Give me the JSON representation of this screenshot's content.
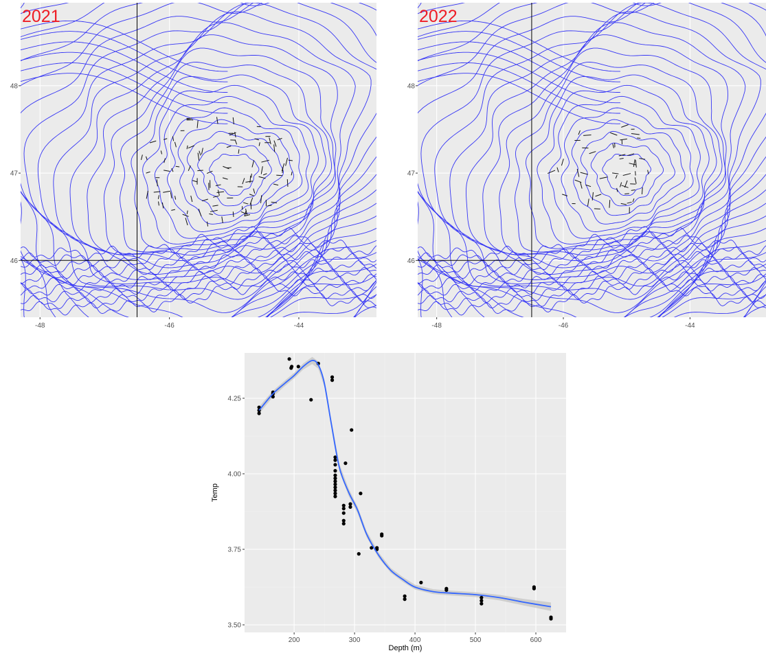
{
  "colors": {
    "panel_background": "#ebebeb",
    "grid_major": "#ffffff",
    "contour": "#3535f5",
    "segment": "#111111",
    "year_label": "#ee1c25",
    "smooth_line": "#3366ff",
    "smooth_band": "#c4c4c4",
    "point": "#000000"
  },
  "chart_data": [
    {
      "type": "contour-map",
      "title": "2021",
      "x_ticks": [
        "-48",
        "-46",
        "-44"
      ],
      "x_tick_values": [
        -48,
        -46,
        -44
      ],
      "y_ticks": [
        "48",
        "47",
        "46"
      ],
      "y_tick_values": [
        48,
        47,
        46
      ],
      "xlim": [
        -48.3,
        -42.8
      ],
      "ylim": [
        45.35,
        48.95
      ],
      "grid": true,
      "reference_lines": {
        "vertical_x": -46.5,
        "horizontal_y": 46.0
      },
      "segment_count": 110
    },
    {
      "type": "contour-map",
      "title": "2022",
      "x_ticks": [
        "-48",
        "-46",
        "-44"
      ],
      "x_tick_values": [
        -48,
        -46,
        -44
      ],
      "y_ticks": [
        "48",
        "47",
        "46"
      ],
      "y_tick_values": [
        48,
        47,
        46
      ],
      "xlim": [
        -48.3,
        -42.8
      ],
      "ylim": [
        45.35,
        48.95
      ],
      "grid": true,
      "reference_lines": {
        "vertical_x": -46.5,
        "horizontal_y": 46.0
      },
      "segment_count": 55
    },
    {
      "type": "scatter",
      "xlabel": "Depth (m)",
      "ylabel": "Temp",
      "x_ticks": [
        "200",
        "300",
        "400",
        "500",
        "600"
      ],
      "x_tick_values": [
        200,
        300,
        400,
        500,
        600
      ],
      "y_ticks": [
        "3.50",
        "3.75",
        "4.00",
        "4.25"
      ],
      "y_tick_values": [
        3.5,
        3.75,
        4.0,
        4.25
      ],
      "xlim": [
        118,
        650
      ],
      "ylim": [
        3.475,
        4.4
      ],
      "grid": true,
      "points": [
        [
          142,
          4.2
        ],
        [
          142,
          4.21
        ],
        [
          142,
          4.22
        ],
        [
          165,
          4.255
        ],
        [
          165,
          4.265
        ],
        [
          165,
          4.27
        ],
        [
          192,
          4.38
        ],
        [
          195,
          4.35
        ],
        [
          196,
          4.355
        ],
        [
          207,
          4.355
        ],
        [
          228,
          4.245
        ],
        [
          240,
          4.365
        ],
        [
          263,
          4.31
        ],
        [
          263,
          4.32
        ],
        [
          268,
          3.925
        ],
        [
          268,
          3.935
        ],
        [
          268,
          3.945
        ],
        [
          268,
          3.955
        ],
        [
          268,
          3.965
        ],
        [
          268,
          3.975
        ],
        [
          268,
          3.985
        ],
        [
          268,
          3.995
        ],
        [
          268,
          4.01
        ],
        [
          268,
          4.03
        ],
        [
          268,
          4.045
        ],
        [
          268,
          4.055
        ],
        [
          282,
          3.835
        ],
        [
          282,
          3.845
        ],
        [
          282,
          3.87
        ],
        [
          282,
          3.885
        ],
        [
          282,
          3.895
        ],
        [
          285,
          4.035
        ],
        [
          293,
          3.89
        ],
        [
          293,
          3.9
        ],
        [
          295,
          4.145
        ],
        [
          307,
          3.735
        ],
        [
          310,
          3.935
        ],
        [
          328,
          3.755
        ],
        [
          337,
          3.755
        ],
        [
          337,
          3.75
        ],
        [
          345,
          3.795
        ],
        [
          345,
          3.8
        ],
        [
          383,
          3.585
        ],
        [
          383,
          3.595
        ],
        [
          410,
          3.64
        ],
        [
          452,
          3.615
        ],
        [
          452,
          3.62
        ],
        [
          510,
          3.57
        ],
        [
          510,
          3.58
        ],
        [
          510,
          3.59
        ],
        [
          597,
          3.62
        ],
        [
          597,
          3.625
        ],
        [
          625,
          3.52
        ],
        [
          625,
          3.525
        ]
      ],
      "smooth": {
        "x": [
          142,
          165,
          185,
          200,
          215,
          230,
          240,
          250,
          262,
          275,
          290,
          305,
          320,
          340,
          360,
          380,
          400,
          430,
          460,
          500,
          540,
          580,
          625
        ],
        "y": [
          4.21,
          4.265,
          4.3,
          4.325,
          4.355,
          4.375,
          4.36,
          4.3,
          4.16,
          4.02,
          3.94,
          3.88,
          3.8,
          3.73,
          3.68,
          3.65,
          3.625,
          3.61,
          3.605,
          3.6,
          3.59,
          3.575,
          3.56
        ],
        "se": [
          0.012,
          0.01,
          0.009,
          0.009,
          0.01,
          0.012,
          0.012,
          0.012,
          0.013,
          0.012,
          0.012,
          0.011,
          0.01,
          0.009,
          0.008,
          0.008,
          0.008,
          0.008,
          0.008,
          0.008,
          0.009,
          0.011,
          0.014
        ]
      }
    }
  ]
}
